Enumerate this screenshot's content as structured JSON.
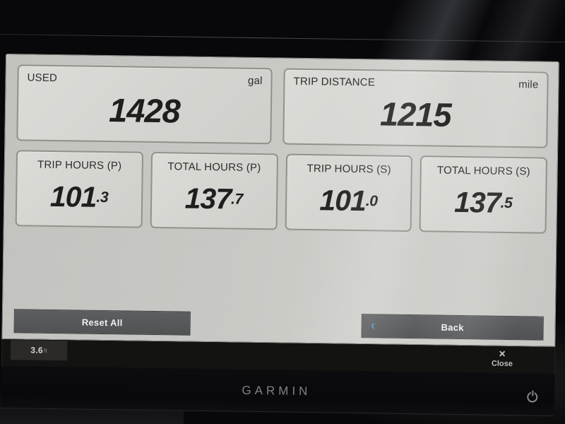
{
  "screen": {
    "large_panels": [
      {
        "label": "USED",
        "unit": "gal",
        "value": "1428"
      },
      {
        "label": "TRIP DISTANCE",
        "unit": "mile",
        "value": "1215"
      }
    ],
    "small_panels": [
      {
        "label": "TRIP HOURS (P)",
        "value_int": "101",
        "value_dec": ".3"
      },
      {
        "label": "TOTAL HOURS (P)",
        "value_int": "137",
        "value_dec": ".7"
      },
      {
        "label": "TRIP HOURS (S)",
        "value_int": "101",
        "value_dec": ".0"
      },
      {
        "label": "TOTAL HOURS (S)",
        "value_int": "137",
        "value_dec": ".5"
      }
    ],
    "buttons": {
      "reset_all": "Reset All",
      "back": "Back",
      "back_chevron": "‹"
    },
    "status_bar": {
      "depth_value": "3.6",
      "depth_unit": "ft"
    },
    "close_control": {
      "icon": "×",
      "label": "Close"
    }
  },
  "bezel": {
    "brand": "GARMIN"
  },
  "colors": {
    "accent_chevron": "#4b93b7",
    "screen_bg": "#c8c9c4",
    "panel_bg": "#d4d5d0",
    "button_bg": "#55575a",
    "status_box_bg": "#2c2a27"
  }
}
